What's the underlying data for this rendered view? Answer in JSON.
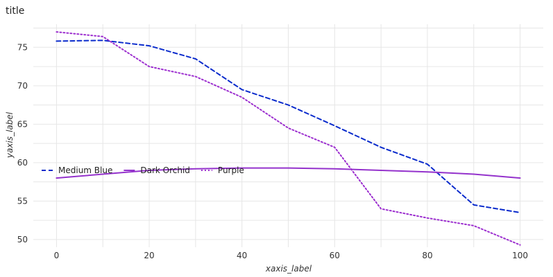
{
  "chart_data": {
    "type": "line",
    "title": "title",
    "xlabel": "xaxis_label",
    "ylabel": "yaxis_label",
    "xlim": [
      -5,
      105
    ],
    "ylim": [
      49,
      78
    ],
    "xticks": [
      0,
      20,
      40,
      60,
      80,
      100
    ],
    "yticks": [
      50,
      55,
      60,
      65,
      70,
      75
    ],
    "grid": true,
    "legend": "left, inside plot",
    "x": [
      0,
      10,
      20,
      30,
      40,
      50,
      60,
      70,
      80,
      90,
      100
    ],
    "series": [
      {
        "name": "Medium Blue",
        "color": "#0a2bcc",
        "dash": "6,4",
        "values": [
          75.8,
          75.9,
          75.2,
          73.5,
          69.5,
          67.5,
          64.8,
          62.0,
          59.8,
          54.5,
          53.5
        ]
      },
      {
        "name": "Dark Orchid",
        "color": "#9432cc",
        "dash": "",
        "values": [
          58.0,
          58.5,
          59.0,
          59.2,
          59.3,
          59.3,
          59.2,
          59.0,
          58.8,
          58.5,
          58.0
        ]
      },
      {
        "name": "Purple",
        "color": "#9c2ecf",
        "dash": "2,3",
        "values": [
          77.0,
          76.4,
          72.5,
          71.2,
          68.5,
          64.5,
          62.0,
          54.0,
          52.8,
          51.8,
          49.3
        ]
      }
    ]
  }
}
